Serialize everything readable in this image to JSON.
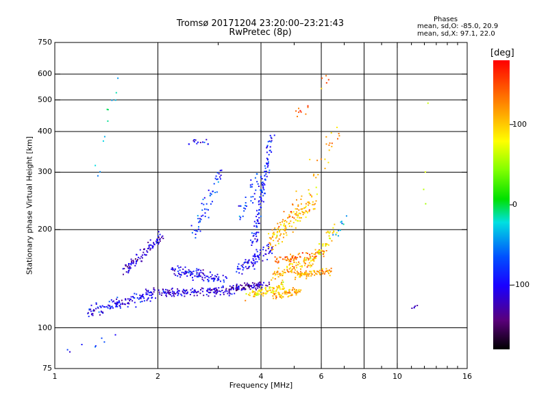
{
  "header": {
    "title_line1": "Tromsø 20171204 23:20:00–23:21:43",
    "title_line2": "RwPretec (8p)"
  },
  "phase_box": {
    "heading": "Phases",
    "line_o": "mean, sd,O: -85.0, 20.9",
    "line_x": "mean, sd,X:  97.1, 22.0"
  },
  "colorbar": {
    "label": "[deg]",
    "ticks": [
      {
        "value": 100,
        "label": "100"
      },
      {
        "value": 0,
        "label": "0"
      },
      {
        "value": -100,
        "label": "-100"
      }
    ],
    "range": [
      -180,
      180
    ],
    "colormap": "rainbow (black-purple-blue-cyan-green-yellow-orange-red)"
  },
  "chart_data": {
    "type": "scatter",
    "title": "Tromsø 20171204 23:20:00–23:21:43",
    "subtitle": "RwPretec (8p)",
    "xlabel": "Frequency [MHz]",
    "ylabel": "Stationary phase Virtual Height [km]",
    "x_scale": "log",
    "y_scale": "log",
    "xlim": [
      1,
      16
    ],
    "ylim": [
      75,
      750
    ],
    "x_ticks": [
      {
        "value": 1,
        "label": "1"
      },
      {
        "value": 2,
        "label": "2"
      },
      {
        "value": 4,
        "label": "4"
      },
      {
        "value": 6,
        "label": "6"
      },
      {
        "value": 8,
        "label": "8"
      },
      {
        "value": 10,
        "label": "10"
      },
      {
        "value": 16,
        "label": "16"
      }
    ],
    "x_minor": [
      3,
      5,
      7,
      9,
      11,
      12,
      13,
      14,
      15
    ],
    "x_grid": [
      2,
      4,
      6,
      8,
      10
    ],
    "y_ticks": [
      {
        "value": 75,
        "label": "75"
      },
      {
        "value": 100,
        "label": "100"
      },
      {
        "value": 200,
        "label": "200"
      },
      {
        "value": 300,
        "label": "300"
      },
      {
        "value": 400,
        "label": "400"
      },
      {
        "value": 500,
        "label": "500"
      },
      {
        "value": 600,
        "label": "600"
      },
      {
        "value": 750,
        "label": "750"
      }
    ],
    "y_grid": [
      100,
      200,
      300,
      400,
      500,
      600
    ],
    "grid": true,
    "color_by": "phase [deg]",
    "traces": [
      {
        "f0": 1.25,
        "f1": 1.95,
        "h0": 112,
        "h1": 128,
        "phase": -100,
        "spread": 0.045,
        "n": 140
      },
      {
        "f0": 1.6,
        "f1": 2.05,
        "h0": 150,
        "h1": 190,
        "phase": -115,
        "spread": 0.05,
        "n": 90
      },
      {
        "f0": 2.0,
        "f1": 3.3,
        "h0": 128,
        "h1": 130,
        "phase": -110,
        "spread": 0.03,
        "n": 140
      },
      {
        "f0": 2.2,
        "f1": 3.2,
        "h0": 150,
        "h1": 140,
        "phase": -100,
        "spread": 0.04,
        "n": 110
      },
      {
        "f0": 3.2,
        "f1": 4.2,
        "h0": 132,
        "h1": 136,
        "phase": -125,
        "spread": 0.025,
        "n": 90
      },
      {
        "f0": 3.4,
        "f1": 4.3,
        "h0": 150,
        "h1": 175,
        "phase": -100,
        "spread": 0.05,
        "n": 80
      },
      {
        "f0": 3.8,
        "f1": 4.3,
        "h0": 180,
        "h1": 390,
        "phase": -90,
        "spread": 0.05,
        "n": 110
      },
      {
        "f0": 3.6,
        "f1": 4.7,
        "h0": 125,
        "h1": 135,
        "phase": 90,
        "spread": 0.03,
        "n": 80
      },
      {
        "f0": 4.3,
        "f1": 5.2,
        "h0": 126,
        "h1": 130,
        "phase": 115,
        "spread": 0.03,
        "n": 70
      },
      {
        "f0": 4.3,
        "f1": 5.6,
        "h0": 145,
        "h1": 160,
        "phase": 110,
        "spread": 0.04,
        "n": 80
      },
      {
        "f0": 5.0,
        "f1": 6.4,
        "h0": 145,
        "h1": 150,
        "phase": 115,
        "spread": 0.025,
        "n": 90
      },
      {
        "f0": 4.4,
        "f1": 6.1,
        "h0": 160,
        "h1": 170,
        "phase": 140,
        "spread": 0.03,
        "n": 70
      },
      {
        "f0": 4.2,
        "f1": 5.8,
        "h0": 180,
        "h1": 250,
        "phase": 105,
        "spread": 0.08,
        "n": 130
      },
      {
        "f0": 5.6,
        "f1": 6.6,
        "h0": 160,
        "h1": 200,
        "phase": 90,
        "spread": 0.06,
        "n": 50
      },
      {
        "f0": 2.45,
        "f1": 2.8,
        "h0": 370,
        "h1": 372,
        "phase": -100,
        "spread": 0.02,
        "n": 14
      },
      {
        "f0": 2.5,
        "f1": 3.1,
        "h0": 190,
        "h1": 300,
        "phase": -75,
        "spread": 0.09,
        "n": 55
      },
      {
        "f0": 3.4,
        "f1": 4.1,
        "h0": 220,
        "h1": 290,
        "phase": -80,
        "spread": 0.08,
        "n": 40
      },
      {
        "f0": 4.5,
        "f1": 6.8,
        "h0": 200,
        "h1": 400,
        "phase": 120,
        "spread": 0.12,
        "n": 40
      },
      {
        "f0": 5.0,
        "f1": 6.8,
        "h0": 450,
        "h1": 620,
        "phase": 140,
        "spread": 0.08,
        "n": 14
      },
      {
        "f0": 6.5,
        "f1": 7.0,
        "h0": 190,
        "h1": 220,
        "phase": -40,
        "spread": 0.05,
        "n": 10
      },
      {
        "f0": 1.3,
        "f1": 1.55,
        "h0": 300,
        "h1": 620,
        "phase": -30,
        "spread": 0.15,
        "n": 12
      },
      {
        "f0": 1.05,
        "f1": 1.6,
        "h0": 85,
        "h1": 95,
        "phase": -80,
        "spread": 0.05,
        "n": 8
      },
      {
        "f0": 11.0,
        "f1": 11.5,
        "h0": 115,
        "h1": 117,
        "phase": -130,
        "spread": 0.01,
        "n": 5
      },
      {
        "f0": 12.0,
        "f1": 12.1,
        "h0": 170,
        "h1": 620,
        "phase": 60,
        "spread": 0.1,
        "n": 4
      }
    ]
  }
}
